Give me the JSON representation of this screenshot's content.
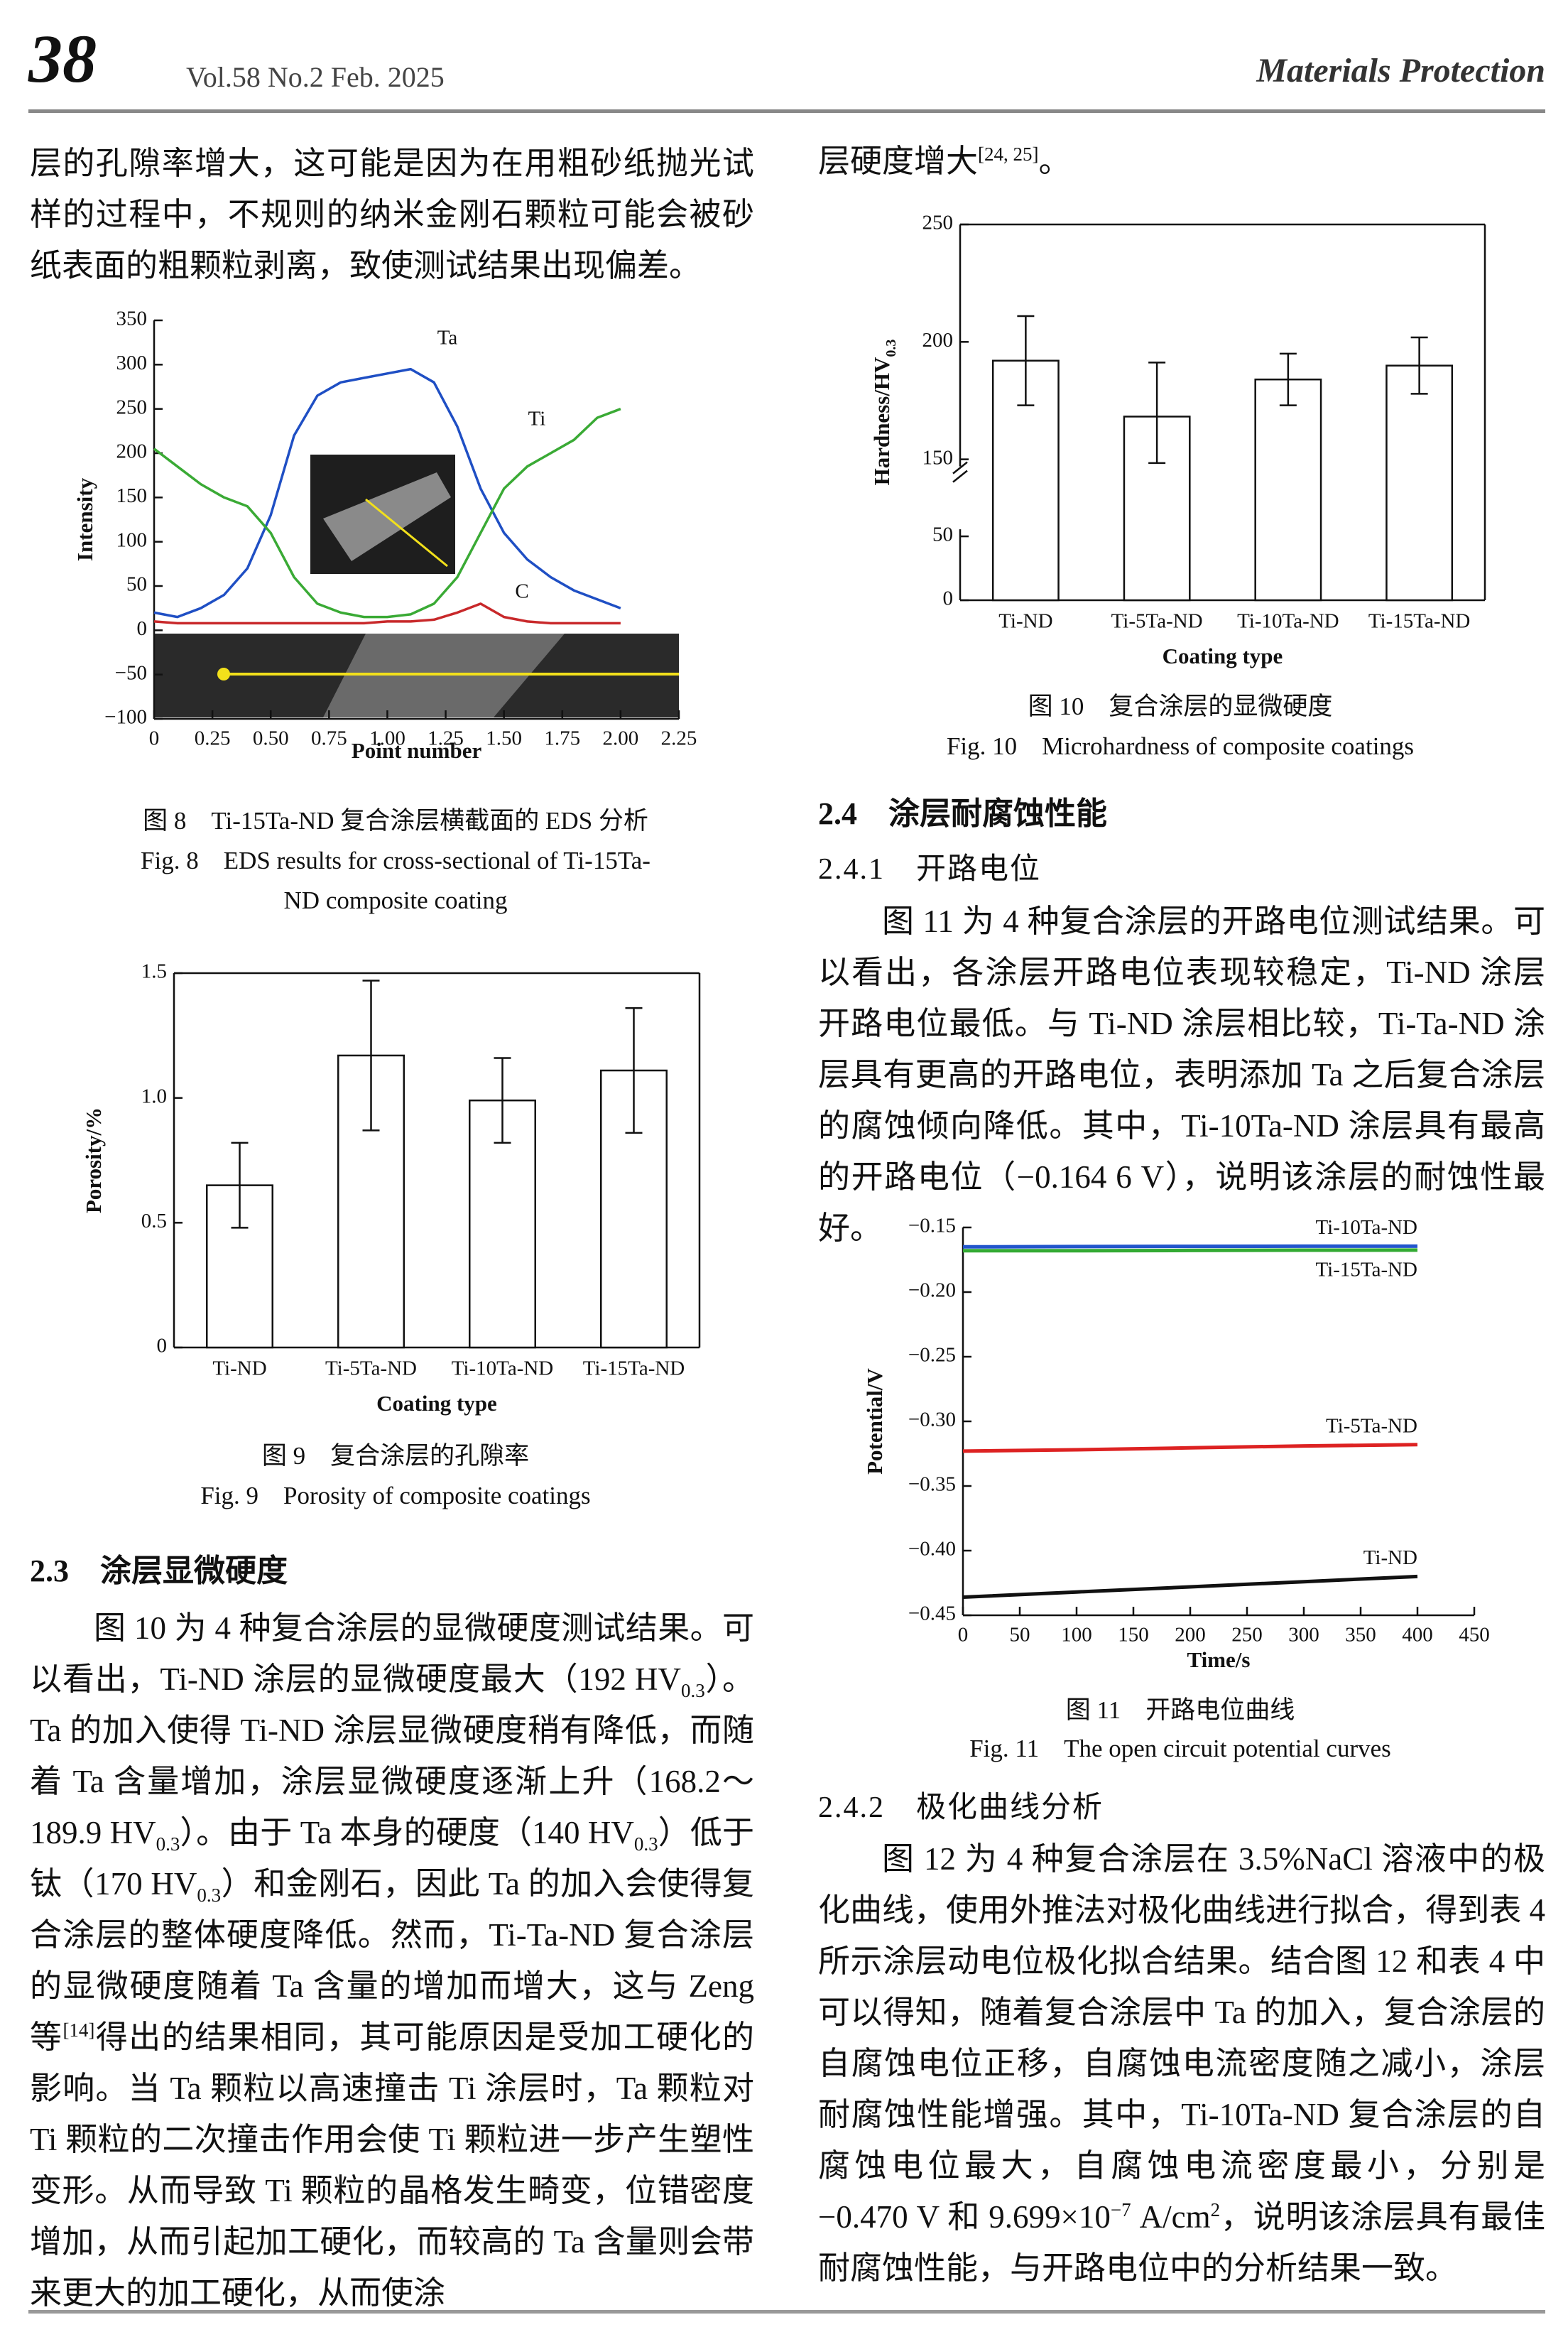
{
  "header": {
    "page_number": "38",
    "issue": "Vol.58 No.2 Feb. 2025",
    "journal": "Materials Protection"
  },
  "sections": [
    {
      "number": "2.3",
      "title": "涂层显微硬度"
    },
    {
      "number": "2.4",
      "title": "涂层耐腐蚀性能"
    },
    {
      "number": "2.4.1",
      "title": "开路电位"
    },
    {
      "number": "2.4.2",
      "title": "极化曲线分析"
    }
  ],
  "body": [
    [
      "层的孔隙率增大，这可能是因为在用粗砂纸抛光试样的过程中，不规则的纳米金刚石颗粒可能会被砂纸表面的粗颗粒剥离，致使测试结果出现偏差。"
    ],
    [
      "图 10 为 4 种复合涂层的显微硬度测试结果。可以看出，Ti-ND 涂层的显微硬度最大（192 HV",
      {
        "sub": "0.3"
      },
      "）。Ta 的加入使得 Ti-ND 涂层显微硬度稍有降低，而随着 Ta 含量增加，涂层显微硬度逐渐上升（168.2～189.9 HV",
      {
        "sub": "0.3"
      },
      "）。由于 Ta 本身的硬度（140 HV",
      {
        "sub": "0.3"
      },
      "）低于钛（170 HV",
      {
        "sub": "0.3"
      },
      "）和金刚石，因此 Ta 的加入会使得复合涂层的整体硬度降低。然而，Ti-Ta-ND 复合涂层的显微硬度随着 Ta 含量的增加而增大，这与 Zeng 等",
      {
        "sup": "[14]"
      },
      "得出的结果相同，其可能原因是受加工硬化的影响。当 Ta 颗粒以高速撞击 Ti 涂层时，Ta 颗粒对 Ti 颗粒的二次撞击作用会使 Ti 颗粒进一步产生塑性变形。从而导致 Ti 颗粒的晶格发生畸变，位错密度增加，从而引起加工硬化，而较高的 Ta 含量则会带来更大的加工硬化，从而使涂"
    ],
    [
      "层硬度增大",
      {
        "sup": "[24, 25]"
      },
      "。"
    ],
    [
      "图 11 为 4 种复合涂层的开路电位测试结果。可以看出，各涂层开路电位表现较稳定，Ti-ND 涂层开路电位最低。与 Ti-ND 涂层相比较，Ti-Ta-ND 涂层具有更高的开路电位，表明添加 Ta 之后复合涂层的腐蚀倾向降低。其中，Ti-10Ta-ND 涂层具有最高的开路电位（−0.164 6 V），说明该涂层的耐蚀性最好。"
    ],
    [
      "图 12 为 4 种复合涂层在 3.5%NaCl 溶液中的极化曲线，使用外推法对极化曲线进行拟合，得到表 4 所示涂层动电位极化拟合结果。结合图 12 和表 4 中可以得知，随着复合涂层中 Ta 的加入，复合涂层的自腐蚀电位正移，自腐蚀电流密度随之减小，涂层耐腐蚀性能增强。其中，Ti-10Ta-ND 复合涂层的自腐蚀电位最大，自腐蚀电流密度最小，分别是−0.470 V 和 9.699×10",
      {
        "sup": "−7"
      },
      " A/cm",
      {
        "sup": "2"
      },
      "，说明该涂层具有最佳耐腐蚀性能，与开路电位中的分析结果一致。"
    ]
  ],
  "figures": [
    {
      "caption_cn": "图 8　Ti-15Ta-ND 复合涂层横截面的 EDS 分析",
      "caption_en": "Fig. 8　EDS results for cross-sectional of Ti-15Ta-ND composite coating",
      "chart": {
        "type": "line",
        "xlabel": "Point number",
        "ylabel": "Intensity",
        "x": [
          0,
          0.1,
          0.2,
          0.3,
          0.4,
          0.5,
          0.6,
          0.7,
          0.8,
          0.9,
          1.0,
          1.1,
          1.2,
          1.3,
          1.4,
          1.5,
          1.6,
          1.7,
          1.8,
          1.9,
          2.0
        ],
        "series": [
          {
            "name": "Ta",
            "color": "#1f4fc4",
            "values": [
              20,
              15,
              25,
              40,
              70,
              130,
              220,
              265,
              280,
              285,
              290,
              295,
              280,
              230,
              160,
              110,
              80,
              60,
              45,
              35,
              25
            ]
          },
          {
            "name": "Ti",
            "color": "#3aaa35",
            "values": [
              205,
              185,
              165,
              150,
              140,
              110,
              60,
              30,
              20,
              15,
              15,
              18,
              30,
              60,
              110,
              160,
              185,
              200,
              215,
              240,
              250
            ]
          },
          {
            "name": "C",
            "color": "#c8282a",
            "values": [
              10,
              8,
              8,
              8,
              8,
              8,
              8,
              8,
              8,
              8,
              10,
              10,
              12,
              20,
              30,
              15,
              10,
              8,
              8,
              8,
              8
            ]
          }
        ],
        "xlim": [
          0,
          2.25
        ],
        "xticks": [
          0,
          0.25,
          {
            "value": 0.5,
            "label": "0.50"
          },
          0.75,
          {
            "value": 1,
            "label": "1.00"
          },
          1.25,
          {
            "value": 1.5,
            "label": "1.50"
          },
          1.75,
          {
            "value": 2,
            "label": "2.00"
          },
          2.25
        ],
        "ylim": [
          -100,
          350
        ],
        "yticks": [
          {
            "value": -100,
            "label": "−100"
          },
          {
            "value": -50,
            "label": "−50"
          },
          0,
          50,
          100,
          150,
          200,
          250,
          300,
          350
        ]
      }
    },
    {
      "caption_cn": "图 9　复合涂层的孔隙率",
      "caption_en": "Fig. 9　Porosity of composite coatings",
      "chart": {
        "type": "bar",
        "xlabel": "Coating type",
        "ylabel": "Porosity/%",
        "color": "#ffffff",
        "categories": [
          "Ti-ND",
          "Ti-5Ta-ND",
          "Ti-10Ta-ND",
          "Ti-15Ta-ND"
        ],
        "values": [
          0.65,
          1.17,
          0.99,
          1.11
        ],
        "errors": [
          0.17,
          0.3,
          0.17,
          0.25
        ],
        "ylim": [
          0,
          1.5
        ],
        "yticks": [
          0,
          0.5,
          {
            "value": 1,
            "label": "1.0"
          },
          1.5
        ]
      }
    },
    {
      "caption_cn": "图 10　复合涂层的显微硬度",
      "caption_en": "Fig. 10　Microhardness of composite coatings",
      "chart": {
        "type": "bar",
        "xlabel": "Coating type",
        "ylabel": "Hardness/HV",
        "ylabel_sub": "0.3",
        "color": "#ffffff",
        "categories": [
          "Ti-ND",
          "Ti-5Ta-ND",
          "Ti-10Ta-ND",
          "Ti-15Ta-ND"
        ],
        "values": [
          192,
          168.2,
          184,
          189.9
        ],
        "errors": [
          19,
          23,
          11,
          12
        ],
        "ylim": [
          0,
          250
        ],
        "y_break": [
          50,
          150
        ],
        "yticks": [
          0,
          50,
          150,
          200,
          250
        ]
      }
    },
    {
      "caption_cn": "图 11　开路电位曲线",
      "caption_en": "Fig. 11　The open circuit potential curves",
      "chart": {
        "type": "line",
        "xlabel": "Time/s",
        "ylabel": "Potential/V",
        "x": [
          0,
          100,
          200,
          300,
          400
        ],
        "series": [
          {
            "name": "Ti-10Ta-ND",
            "color": "#2255cc",
            "values": [
              -0.165,
              -0.1648,
              -0.1646,
              -0.1645,
              -0.1645
            ]
          },
          {
            "name": "Ti-15Ta-ND",
            "color": "#33aa33",
            "values": [
              -0.168,
              -0.168,
              -0.1678,
              -0.1676,
              -0.1675
            ]
          },
          {
            "name": "Ti-5Ta-ND",
            "color": "#dd2222",
            "values": [
              -0.323,
              -0.322,
              -0.3205,
              -0.319,
              -0.318
            ]
          },
          {
            "name": "Ti-ND",
            "color": "#111111",
            "values": [
              -0.436,
              -0.432,
              -0.428,
              -0.424,
              -0.42
            ]
          }
        ],
        "xlim": [
          0,
          450
        ],
        "xticks": [
          0,
          50,
          100,
          150,
          200,
          250,
          300,
          350,
          400,
          450
        ],
        "ylim": [
          -0.45,
          -0.15
        ],
        "yticks": [
          {
            "value": -0.45,
            "label": "−0.45"
          },
          {
            "value": -0.4,
            "label": "−0.40"
          },
          {
            "value": -0.35,
            "label": "−0.35"
          },
          {
            "value": -0.3,
            "label": "−0.30"
          },
          {
            "value": -0.25,
            "label": "−0.25"
          },
          {
            "value": -0.2,
            "label": "−0.20"
          },
          {
            "value": -0.15,
            "label": "−0.15"
          }
        ]
      }
    }
  ]
}
